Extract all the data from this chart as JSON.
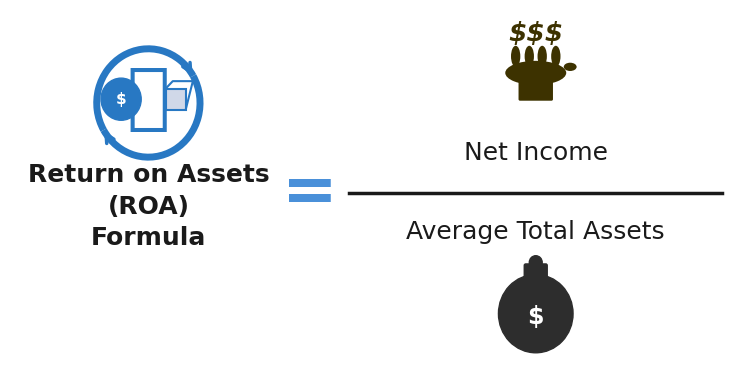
{
  "bg_color": "#ffffff",
  "title_lines": [
    "Return on Assets",
    "(ROA)",
    "Formula"
  ],
  "title_color": "#1a1a1a",
  "title_fontsize": 18,
  "equals_sign": "=",
  "equals_color": "#4a90d9",
  "equals_fontsize": 48,
  "numerator_text": "Net Income",
  "denominator_text": "Average Total Assets",
  "formula_text_color": "#1a1a1a",
  "formula_fontsize": 18,
  "line_color": "#1a1a1a",
  "icon_color_blue": "#2878c3",
  "icon_color_dark": "#3d3200",
  "money_bag_color": "#2d2d2d",
  "dollar_sign_color_bag": "#2d2d2d",
  "hand_color": "#3d3200",
  "dollar_sign_floating": "#3d3200"
}
